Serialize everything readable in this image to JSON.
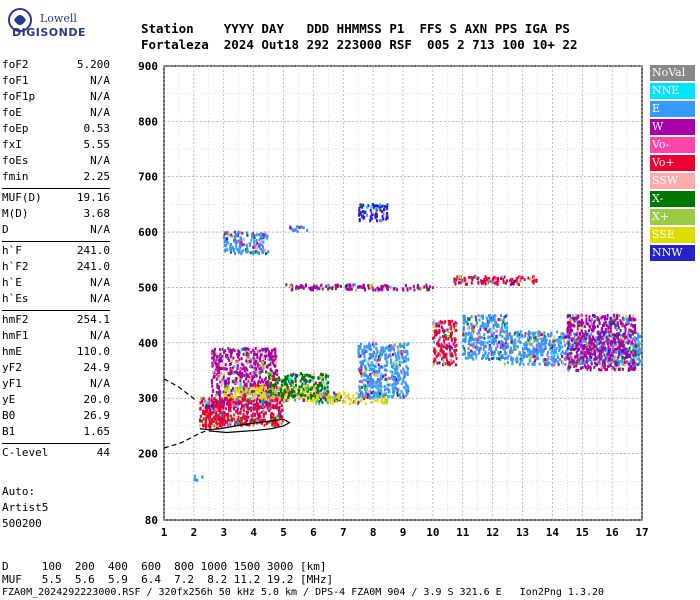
{
  "logo": {
    "line1": "Lowell",
    "line2": "DIGISONDE"
  },
  "header": {
    "line1": "Station    YYYY DAY   DDD HHMMSS P1  FFS S AXN PPS IGA PS",
    "line2": "Fortaleza  2024 Out18 292 223000 RSF  005 2 713 100 10+ 22"
  },
  "params_group1": [
    {
      "name": "foF2",
      "value": "5.200"
    },
    {
      "name": "foF1",
      "value": "N/A"
    },
    {
      "name": "foF1p",
      "value": "N/A"
    },
    {
      "name": "foE",
      "value": "N/A"
    },
    {
      "name": "foEp",
      "value": "0.53"
    },
    {
      "name": "fxI",
      "value": "5.55"
    },
    {
      "name": "foEs",
      "value": "N/A"
    },
    {
      "name": "fmin",
      "value": "2.25"
    }
  ],
  "params_group2": [
    {
      "name": "MUF(D)",
      "value": "19.16"
    },
    {
      "name": "M(D)",
      "value": "3.68"
    },
    {
      "name": "D",
      "value": "N/A"
    }
  ],
  "params_group3": [
    {
      "name": "h`F",
      "value": "241.0"
    },
    {
      "name": "h`F2",
      "value": "241.0"
    },
    {
      "name": "h`E",
      "value": "N/A"
    },
    {
      "name": "h`Es",
      "value": "N/A"
    }
  ],
  "params_group4": [
    {
      "name": "hmF2",
      "value": "254.1"
    },
    {
      "name": "hmF1",
      "value": "N/A"
    },
    {
      "name": "hmE",
      "value": "110.0"
    },
    {
      "name": "yF2",
      "value": "24.9"
    },
    {
      "name": "yF1",
      "value": "N/A"
    },
    {
      "name": "yE",
      "value": "20.0"
    },
    {
      "name": "B0",
      "value": "26.9"
    },
    {
      "name": "B1",
      "value": "1.65"
    }
  ],
  "params_group5": [
    {
      "name": "C-level",
      "value": "44"
    }
  ],
  "auto": {
    "line1": "Auto:",
    "line2": "Artist5",
    "line3": "500200"
  },
  "bottom": {
    "d_line": "D     100  200  400  600  800 1000 1500 3000 [km]",
    "muf_line": "MUF   5.5  5.6  5.9  6.4  7.2  8.2 11.2 19.2 [MHz]",
    "file_line": "FZA0M_2024292223000.RSF / 320fx256h 50 kHz 5.0 km / DPS-4 FZA0M 904 / 3.9 S 321.6 E   Ion2Png 1.3.20"
  },
  "legend": [
    {
      "label": "NoVal",
      "color": "#888888",
      "text": "#ffffff"
    },
    {
      "label": "NNE",
      "color": "#00e5ff",
      "text": "#ffffff"
    },
    {
      "label": "E",
      "color": "#3399ff",
      "text": "#ffffff"
    },
    {
      "label": "W",
      "color": "#aa00aa",
      "text": "#ffffff"
    },
    {
      "label": "Vo-",
      "color": "#ff44aa",
      "text": "#ffffff"
    },
    {
      "label": "Vo+",
      "color": "#ee0033",
      "text": "#ffffff"
    },
    {
      "label": "SSW",
      "color": "#ffaaaa",
      "text": "#ffffff"
    },
    {
      "label": "X-",
      "color": "#007700",
      "text": "#ffffff"
    },
    {
      "label": "X+",
      "color": "#99cc44",
      "text": "#ffffff"
    },
    {
      "label": "SSE",
      "color": "#dddd00",
      "text": "#ffffff"
    },
    {
      "label": "NNW",
      "color": "#2222cc",
      "text": "#ffffff"
    }
  ],
  "chart_data": {
    "type": "scatter",
    "x_ticks": [
      1,
      2,
      3,
      4,
      5,
      6,
      7,
      8,
      9,
      10,
      11,
      12,
      13,
      14,
      15,
      16,
      17
    ],
    "y_ticks": [
      80,
      200,
      300,
      400,
      500,
      600,
      700,
      800,
      900
    ],
    "xlim": [
      1,
      17
    ],
    "ylim": [
      80,
      900
    ],
    "grid": true,
    "clusters": [
      {
        "x_range": [
          2.2,
          3.0
        ],
        "y_range": [
          245,
          300
        ],
        "direction": "Vo+"
      },
      {
        "x_range": [
          2.6,
          4.8
        ],
        "y_range": [
          280,
          390
        ],
        "direction": "W"
      },
      {
        "x_range": [
          3.0,
          6.2
        ],
        "y_range": [
          295,
          320
        ],
        "direction": "SSE"
      },
      {
        "x_range": [
          2.4,
          5.0
        ],
        "y_range": [
          250,
          300
        ],
        "direction": "Vo+"
      },
      {
        "x_range": [
          4.5,
          6.5
        ],
        "y_range": [
          300,
          345
        ],
        "direction": "X-"
      },
      {
        "x_range": [
          6.0,
          8.5
        ],
        "y_range": [
          290,
          310
        ],
        "direction": "SSE"
      },
      {
        "x_range": [
          7.5,
          9.2
        ],
        "y_range": [
          300,
          400
        ],
        "direction": "E"
      },
      {
        "x_range": [
          10.0,
          10.8
        ],
        "y_range": [
          360,
          440
        ],
        "direction": "Vo+"
      },
      {
        "x_range": [
          11.0,
          12.5
        ],
        "y_range": [
          370,
          450
        ],
        "direction": "E"
      },
      {
        "x_range": [
          12.4,
          17.0
        ],
        "y_range": [
          360,
          420
        ],
        "direction": "E"
      },
      {
        "x_range": [
          14.5,
          16.8
        ],
        "y_range": [
          350,
          450
        ],
        "direction": "W"
      },
      {
        "x_range": [
          3.0,
          4.5
        ],
        "y_range": [
          560,
          600
        ],
        "direction": "E"
      },
      {
        "x_range": [
          5.2,
          5.8
        ],
        "y_range": [
          600,
          610
        ],
        "direction": "E"
      },
      {
        "x_range": [
          7.5,
          8.5
        ],
        "y_range": [
          620,
          650
        ],
        "direction": "NNW"
      },
      {
        "x_range": [
          5.0,
          10.0
        ],
        "y_range": [
          495,
          505
        ],
        "direction": "W"
      },
      {
        "x_range": [
          10.7,
          13.5
        ],
        "y_range": [
          505,
          520
        ],
        "direction": "Vo+"
      },
      {
        "x_range": [
          2.0,
          2.3
        ],
        "y_range": [
          150,
          160
        ],
        "direction": "E"
      }
    ],
    "curves": [
      {
        "name": "dashed-lower",
        "style": "dashed",
        "points": [
          [
            1,
            210
          ],
          [
            1.6,
            220
          ],
          [
            2.2,
            237
          ],
          [
            2.5,
            243
          ]
        ]
      },
      {
        "name": "dashed-upper",
        "style": "dashed",
        "points": [
          [
            1,
            335
          ],
          [
            1.5,
            320
          ],
          [
            2.1,
            295
          ]
        ]
      },
      {
        "name": "profile",
        "style": "solid",
        "points": [
          [
            2.2,
            245
          ],
          [
            2.5,
            243
          ],
          [
            2.9,
            245
          ],
          [
            3.4,
            250
          ],
          [
            4.0,
            255
          ],
          [
            4.5,
            258
          ],
          [
            5.0,
            262
          ],
          [
            5.2,
            256
          ],
          [
            5.0,
            250
          ],
          [
            4.6,
            245
          ],
          [
            4.1,
            242
          ],
          [
            3.6,
            240
          ],
          [
            3.1,
            238
          ],
          [
            2.5,
            241
          ]
        ]
      }
    ]
  }
}
